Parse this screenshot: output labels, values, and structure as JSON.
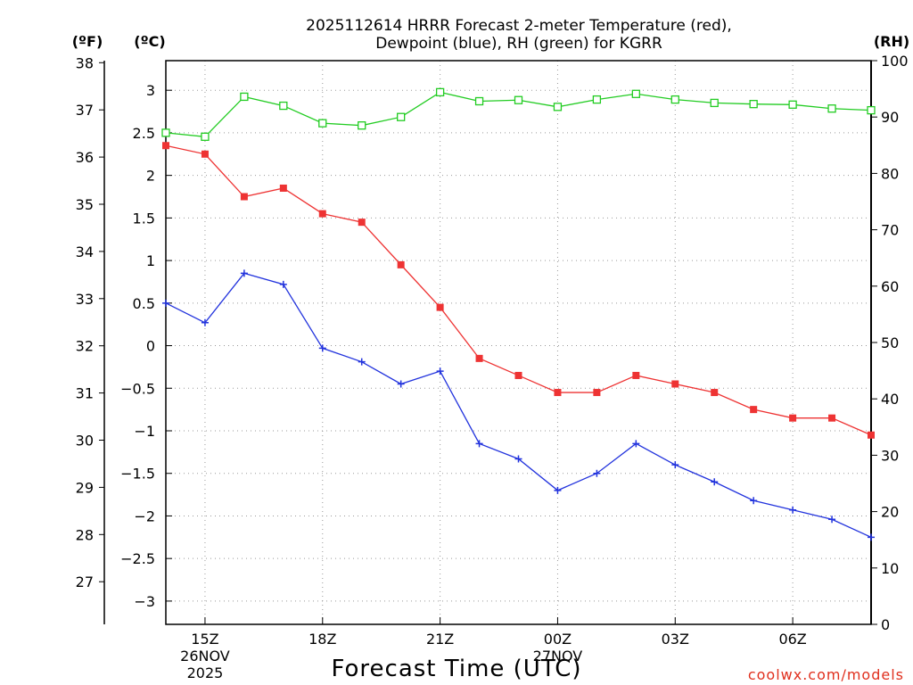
{
  "chart_data": {
    "type": "line",
    "title_line1": "2025112614 HRRR Forecast 2-meter Temperature (red),",
    "title_line2": "Dewpoint (blue), RH (green) for KGRR",
    "xlabel": "Forecast Time (UTC)",
    "credit": "coolwx.com/models",
    "unit_f": "(ºF)",
    "unit_c": "(ºC)",
    "unit_rh": "(RH)",
    "hours": [
      14,
      15,
      16,
      17,
      18,
      19,
      20,
      21,
      22,
      23,
      24,
      25,
      26,
      27,
      28,
      29,
      30,
      31,
      32
    ],
    "x_ticks": [
      {
        "hour": 15,
        "label": "15Z",
        "date1": "26NOV",
        "date2": "2025"
      },
      {
        "hour": 18,
        "label": "18Z"
      },
      {
        "hour": 21,
        "label": "21Z"
      },
      {
        "hour": 24,
        "label": "00Z",
        "date1": "27NOV"
      },
      {
        "hour": 27,
        "label": "03Z"
      },
      {
        "hour": 30,
        "label": "06Z"
      }
    ],
    "xlim": [
      14,
      32
    ],
    "ylim_c": [
      -3.25,
      3.35
    ],
    "y_ticks_c": [
      "3",
      "2.5",
      "2",
      "1.5",
      "1",
      "0.5",
      "0",
      "−0.5",
      "−1",
      "−1.5",
      "−2",
      "−2.5",
      "−3"
    ],
    "y_ticks_f": [
      "38",
      "37",
      "36",
      "35",
      "34",
      "33",
      "32",
      "31",
      "30",
      "29",
      "28",
      "27"
    ],
    "y_ticks_rh": [
      "100",
      "90",
      "80",
      "70",
      "60",
      "50",
      "40",
      "30",
      "20",
      "10",
      "0"
    ],
    "ylim_rh": [
      0,
      100
    ],
    "series": [
      {
        "name": "Temperature",
        "color": "#ee3333",
        "marker": "filled-square",
        "values": [
          2.35,
          2.25,
          1.75,
          1.85,
          1.55,
          1.45,
          0.95,
          0.45,
          -0.15,
          -0.35,
          -0.55,
          -0.55,
          -0.35,
          -0.45,
          -0.55,
          -0.75,
          -0.85,
          -0.85,
          -1.05
        ]
      },
      {
        "name": "Dewpoint",
        "color": "#2233dd",
        "marker": "plus",
        "values": [
          0.5,
          0.27,
          0.85,
          0.72,
          -0.03,
          -0.19,
          -0.45,
          -0.3,
          -1.15,
          -1.33,
          -1.7,
          -1.5,
          -1.15,
          -1.4,
          -1.6,
          -1.82,
          -1.93,
          -2.04,
          -2.25
        ]
      },
      {
        "name": "RH",
        "color": "#22cc22",
        "marker": "open-square",
        "values": [
          87.2,
          86.5,
          93.6,
          92.0,
          88.9,
          88.5,
          90.0,
          94.4,
          92.8,
          93.0,
          91.8,
          93.1,
          94.1,
          93.1,
          92.5,
          92.3,
          92.2,
          91.5,
          91.2
        ]
      }
    ]
  }
}
